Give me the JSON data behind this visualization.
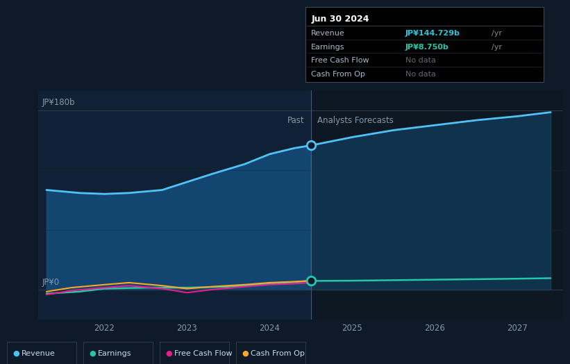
{
  "background_color": "#0e1a27",
  "plot_bg_color": "#0e1a27",
  "ylabel_top": "JP¥180b",
  "ylabel_bottom": "JP¥0",
  "past_label": "Past",
  "forecast_label": "Analysts Forecasts",
  "divider_x": 2024.5,
  "x_ticks": [
    2022,
    2023,
    2024,
    2025,
    2026,
    2027
  ],
  "revenue_past_x": [
    2021.3,
    2021.7,
    2022.0,
    2022.3,
    2022.7,
    2023.0,
    2023.3,
    2023.7,
    2024.0,
    2024.3,
    2024.5
  ],
  "revenue_past_y": [
    100,
    97,
    96,
    97,
    100,
    108,
    116,
    126,
    136,
    142,
    144.729
  ],
  "revenue_forecast_x": [
    2024.5,
    2025.0,
    2025.5,
    2026.0,
    2026.5,
    2027.0,
    2027.4
  ],
  "revenue_forecast_y": [
    144.729,
    153,
    160,
    165,
    170,
    174,
    178
  ],
  "earnings_past_x": [
    2021.3,
    2021.7,
    2022.0,
    2022.5,
    2023.0,
    2023.5,
    2024.0,
    2024.5
  ],
  "earnings_past_y": [
    -4,
    -2,
    1,
    2,
    2,
    3,
    6,
    8.75
  ],
  "earnings_forecast_x": [
    2024.5,
    2025.0,
    2025.5,
    2026.0,
    2026.5,
    2027.0,
    2027.4
  ],
  "earnings_forecast_y": [
    8.75,
    9.0,
    9.5,
    10.0,
    10.5,
    11.0,
    11.5
  ],
  "fcf_past_x": [
    2021.3,
    2021.6,
    2022.0,
    2022.3,
    2022.7,
    2023.0,
    2023.3,
    2023.7,
    2024.0,
    2024.3,
    2024.5
  ],
  "fcf_past_y": [
    -5,
    -1,
    2,
    4,
    1,
    -3,
    0,
    3,
    5,
    6,
    7
  ],
  "cashop_past_x": [
    2021.3,
    2021.6,
    2022.0,
    2022.3,
    2022.7,
    2023.0,
    2023.3,
    2023.7,
    2024.0,
    2024.3,
    2024.5
  ],
  "cashop_past_y": [
    -2,
    2,
    5,
    7,
    4,
    1,
    3,
    5,
    7,
    8,
    9
  ],
  "revenue_color": "#4fc3f7",
  "earnings_color": "#26c6aa",
  "fcf_color": "#e91e8c",
  "cashop_color": "#ffa726",
  "ylim_data": [
    -30,
    200
  ],
  "y180_val": 180,
  "y0_val": 0,
  "tooltip_title": "Jun 30 2024",
  "tooltip_rows": [
    [
      "Revenue",
      "JP¥144.729b",
      "/yr",
      "#26c6da",
      true
    ],
    [
      "Earnings",
      "JP¥8.750b",
      "/yr",
      "#26c6aa",
      true
    ],
    [
      "Free Cash Flow",
      "No data",
      "",
      "#666666",
      false
    ],
    [
      "Cash From Op",
      "No data",
      "",
      "#666666",
      false
    ]
  ],
  "tooltip_bg": "#000000",
  "tooltip_border": "#3a4a5a",
  "legend_items": [
    "Revenue",
    "Earnings",
    "Free Cash Flow",
    "Cash From Op"
  ],
  "legend_colors": [
    "#4fc3f7",
    "#26c6aa",
    "#e91e8c",
    "#ffa726"
  ]
}
